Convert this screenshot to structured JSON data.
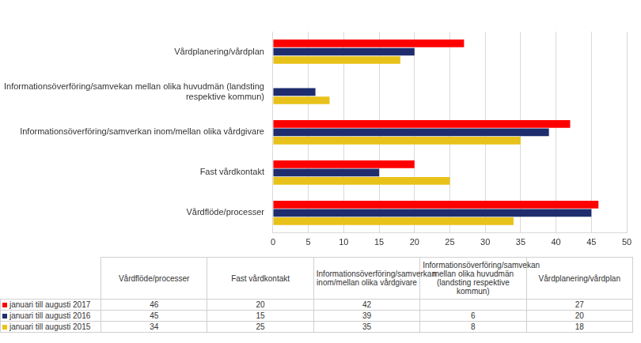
{
  "chart_data": {
    "type": "bar",
    "orientation": "horizontal",
    "categories": [
      "Vårdflöde/processer",
      "Fast vårdkontakt",
      "Informationsöverföring/samverkan inom/mellan olika vårdgivare",
      "Informationsöverföring/samvekan mellan olika huvudmän (landsting respektive kommun)",
      "Vårdplanering/vårdplan"
    ],
    "series": [
      {
        "name": "januari till augusti 2017",
        "color": "#ff0000",
        "values": [
          46,
          20,
          42,
          null,
          27
        ]
      },
      {
        "name": "januari till augusti 2016",
        "color": "#1f2d6e",
        "values": [
          45,
          15,
          39,
          6,
          20
        ]
      },
      {
        "name": "januari till augusti 2015",
        "color": "#e8c21a",
        "values": [
          34,
          25,
          35,
          8,
          18
        ]
      }
    ],
    "xlim": [
      0,
      50
    ],
    "xticks": [
      0,
      5,
      10,
      15,
      20,
      25,
      30,
      35,
      40,
      45,
      50
    ],
    "grid": true
  }
}
